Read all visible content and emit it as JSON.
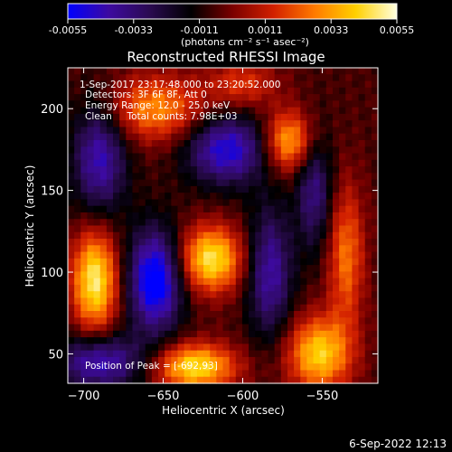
{
  "colorbar": {
    "ticks": [
      "-0.0055",
      "-0.0033",
      "-0.0011",
      "0.0011",
      "0.0033",
      "0.0055"
    ],
    "unit": "(photons cm⁻² s⁻¹ asec⁻²)"
  },
  "info": {
    "line1": "1-Sep-2017 23:17:48.000 to 23:20:52.000",
    "line2": "Detectors: 3F 6F 8F, Att 0",
    "line3": "Energy Range: 12.0 - 25.0 keV",
    "line4": "Clean     Total counts: 7.98E+03",
    "peak": "Position of Peak = [-692,93]"
  },
  "footer": {
    "timestamp": "6-Sep-2022 12:13"
  },
  "chart_data": {
    "type": "heatmap",
    "title": "Reconstructed RHESSI Image",
    "xlabel": "Heliocentric X (arcsec)",
    "ylabel": "Heliocentric Y (arcsec)",
    "xlim": [
      -710,
      -515
    ],
    "ylim": [
      32,
      225
    ],
    "x_ticks": [
      -700,
      -650,
      -600,
      -550
    ],
    "y_ticks": [
      50,
      100,
      150,
      200
    ],
    "colorscale": [
      "#0000ff",
      "#3d0aa0",
      "#2a0a50",
      "#000000",
      "#7a0000",
      "#d22000",
      "#ff7a00",
      "#ffd000",
      "#ffffe0"
    ],
    "zlim": [
      -0.0055,
      0.0055
    ],
    "sources": [
      {
        "x": -693,
        "y": 95,
        "sx": 10,
        "sy": 22,
        "amp": 0.0055
      },
      {
        "x": -620,
        "y": 108,
        "sx": 14,
        "sy": 14,
        "amp": 0.0053
      },
      {
        "x": -630,
        "y": 42,
        "sx": 18,
        "sy": 10,
        "amp": 0.0052
      },
      {
        "x": -552,
        "y": 50,
        "sx": 14,
        "sy": 16,
        "amp": 0.0048
      },
      {
        "x": -571,
        "y": 180,
        "sx": 11,
        "sy": 13,
        "amp": 0.0043
      },
      {
        "x": -535,
        "y": 110,
        "sx": 8,
        "sy": 30,
        "amp": 0.0032
      },
      {
        "x": -655,
        "y": 200,
        "sx": 22,
        "sy": 14,
        "amp": 0.0036
      },
      {
        "x": -600,
        "y": 215,
        "sx": 15,
        "sy": 10,
        "amp": 0.0022
      },
      {
        "x": -655,
        "y": 95,
        "sx": 12,
        "sy": 22,
        "amp": -0.0055
      },
      {
        "x": -610,
        "y": 175,
        "sx": 18,
        "sy": 15,
        "amp": -0.0044
      },
      {
        "x": -583,
        "y": 100,
        "sx": 10,
        "sy": 28,
        "amp": -0.0036
      },
      {
        "x": -690,
        "y": 170,
        "sx": 12,
        "sy": 25,
        "amp": -0.0038
      },
      {
        "x": -555,
        "y": 150,
        "sx": 8,
        "sy": 25,
        "amp": -0.003
      },
      {
        "x": -690,
        "y": 45,
        "sx": 20,
        "sy": 12,
        "amp": -0.004
      }
    ]
  }
}
